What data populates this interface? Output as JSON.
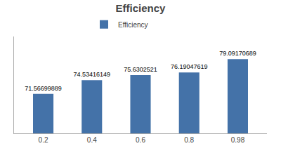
{
  "chart_data": {
    "type": "bar",
    "title": "Efficiency",
    "categories": [
      "0.2",
      "0.4",
      "0.6",
      "0.8",
      "0.98"
    ],
    "series": [
      {
        "name": "Efficiency",
        "color": "#4472a8",
        "values": [
          71.56699889,
          74.53416149,
          75.6302521,
          76.19047619,
          79.09170689
        ]
      }
    ],
    "ylim": [
      63,
      84
    ],
    "grid": false,
    "legend": "top",
    "data_labels": true,
    "tick_labels": "x"
  }
}
